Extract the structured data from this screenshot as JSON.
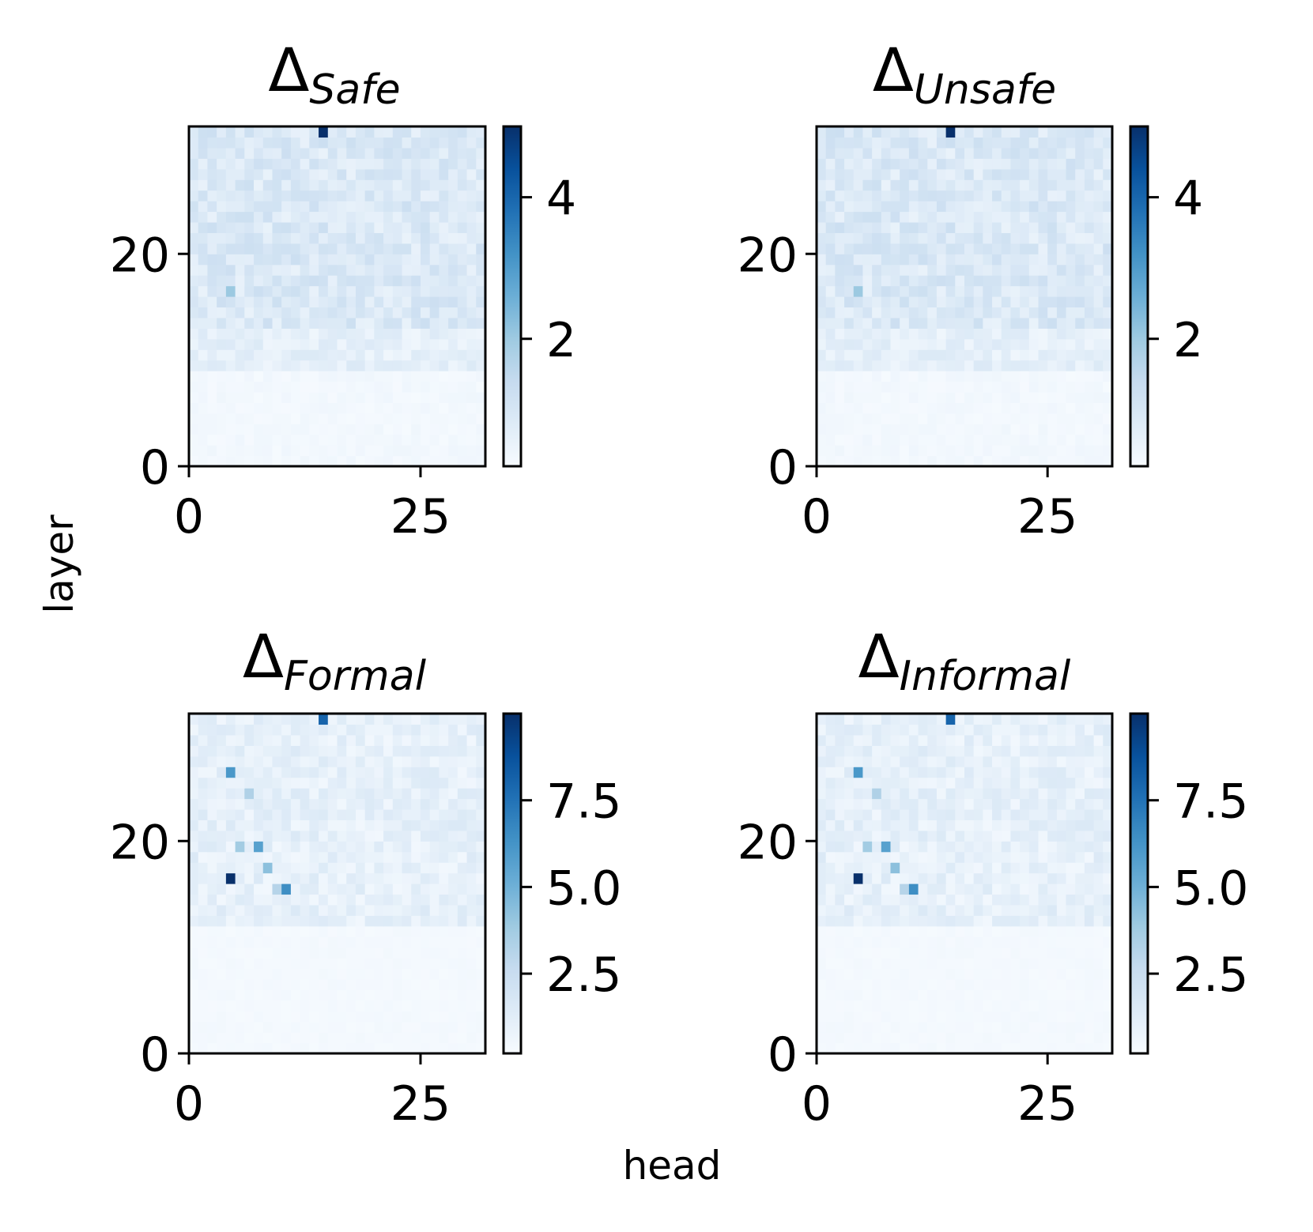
{
  "chart_data": [
    {
      "type": "heatmap",
      "title": "Δ",
      "title_subscript": "Safe",
      "xlabel": "head",
      "ylabel": "layer",
      "x_ticks": [
        "0",
        "25"
      ],
      "y_ticks": [
        "0",
        "20"
      ],
      "n_heads": 32,
      "n_layers": 32,
      "colormap": "Blues",
      "colorbar_range": [
        0,
        5.0
      ],
      "colorbar_ticks": [
        "2",
        "4"
      ],
      "colorbar_tick_values": [
        2,
        4
      ],
      "peaks": [
        {
          "head": 14,
          "layer": 31,
          "value": 5.0
        },
        {
          "head": 4,
          "layer": 16,
          "value": 1.9
        }
      ],
      "grid": false
    },
    {
      "type": "heatmap",
      "title": "Δ",
      "title_subscript": "Unsafe",
      "xlabel": "head",
      "ylabel": "layer",
      "x_ticks": [
        "0",
        "25"
      ],
      "y_ticks": [
        "0",
        "20"
      ],
      "n_heads": 32,
      "n_layers": 32,
      "colormap": "Blues",
      "colorbar_range": [
        0,
        5.0
      ],
      "colorbar_ticks": [
        "2",
        "4"
      ],
      "colorbar_tick_values": [
        2,
        4
      ],
      "peaks": [
        {
          "head": 14,
          "layer": 31,
          "value": 5.0
        },
        {
          "head": 4,
          "layer": 16,
          "value": 1.9
        }
      ],
      "grid": false
    },
    {
      "type": "heatmap",
      "title": "Δ",
      "title_subscript": "Formal",
      "xlabel": "head",
      "ylabel": "layer",
      "x_ticks": [
        "0",
        "25"
      ],
      "y_ticks": [
        "0",
        "20"
      ],
      "n_heads": 32,
      "n_layers": 32,
      "colormap": "Blues",
      "colorbar_range": [
        0,
        10.0
      ],
      "colorbar_ticks": [
        "2.5",
        "5.0",
        "7.5"
      ],
      "colorbar_tick_values": [
        2.5,
        5.0,
        7.5
      ],
      "peaks": [
        {
          "head": 14,
          "layer": 31,
          "value": 8.0
        },
        {
          "head": 4,
          "layer": 26,
          "value": 6.0
        },
        {
          "head": 6,
          "layer": 24,
          "value": 3.2
        },
        {
          "head": 5,
          "layer": 19,
          "value": 3.6
        },
        {
          "head": 7,
          "layer": 19,
          "value": 5.6
        },
        {
          "head": 8,
          "layer": 17,
          "value": 4.2
        },
        {
          "head": 4,
          "layer": 16,
          "value": 10.0
        },
        {
          "head": 9,
          "layer": 15,
          "value": 3.0
        },
        {
          "head": 10,
          "layer": 15,
          "value": 6.4
        }
      ],
      "grid": false
    },
    {
      "type": "heatmap",
      "title": "Δ",
      "title_subscript": "Informal",
      "xlabel": "head",
      "ylabel": "layer",
      "x_ticks": [
        "0",
        "25"
      ],
      "y_ticks": [
        "0",
        "20"
      ],
      "n_heads": 32,
      "n_layers": 32,
      "colormap": "Blues",
      "colorbar_range": [
        0,
        10.0
      ],
      "colorbar_ticks": [
        "2.5",
        "5.0",
        "7.5"
      ],
      "colorbar_tick_values": [
        2.5,
        5.0,
        7.5
      ],
      "peaks": [
        {
          "head": 14,
          "layer": 31,
          "value": 8.0
        },
        {
          "head": 4,
          "layer": 26,
          "value": 6.0
        },
        {
          "head": 6,
          "layer": 24,
          "value": 3.2
        },
        {
          "head": 5,
          "layer": 19,
          "value": 3.6
        },
        {
          "head": 7,
          "layer": 19,
          "value": 5.6
        },
        {
          "head": 8,
          "layer": 17,
          "value": 4.2
        },
        {
          "head": 4,
          "layer": 16,
          "value": 10.0
        },
        {
          "head": 9,
          "layer": 15,
          "value": 3.0
        },
        {
          "head": 10,
          "layer": 15,
          "value": 6.4
        }
      ],
      "grid": false
    }
  ],
  "figure": {
    "xlabel": "head",
    "ylabel": "layer"
  }
}
